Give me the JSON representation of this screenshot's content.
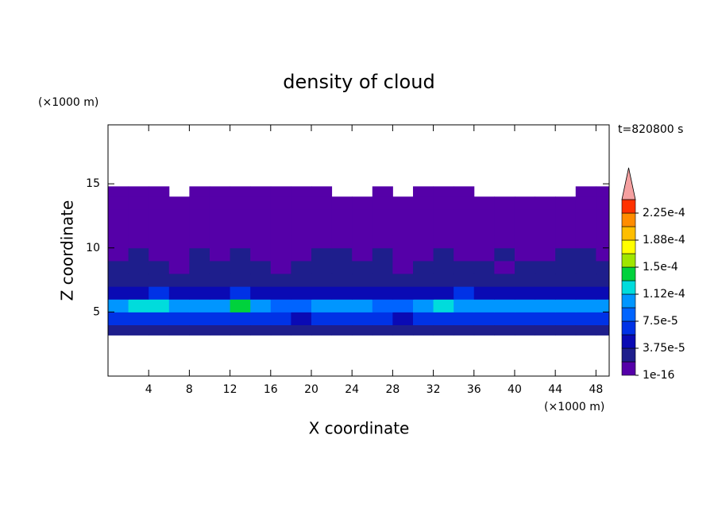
{
  "chart_data": {
    "type": "contour",
    "title": "density of cloud",
    "x_label": "X coordinate",
    "y_label": "Z coordinate",
    "x_unit": "(×1000 m)",
    "y_unit": "(×1000 m)",
    "time_label": "t=820800 s",
    "xlim": [
      0,
      49.3
    ],
    "ylim": [
      0,
      19.6
    ],
    "xticks": [
      4,
      8,
      12,
      16,
      20,
      24,
      28,
      32,
      36,
      40,
      44,
      48
    ],
    "yticks": [
      5,
      10,
      15
    ],
    "x_bins": [
      0,
      2,
      4,
      6,
      8,
      10,
      12,
      14,
      16,
      18,
      20,
      22,
      24,
      26,
      28,
      30,
      32,
      34,
      36,
      38,
      40,
      42,
      44,
      46,
      48,
      50
    ],
    "z_bins": [
      3.2,
      4,
      5,
      6,
      7,
      8,
      9,
      10,
      11,
      12,
      13,
      14,
      14.8
    ],
    "values": [
      [
        2.5e-05,
        2.5e-05,
        2.5e-05,
        2.5e-05,
        2.5e-05,
        2.5e-05,
        2.5e-05,
        2.5e-05,
        2.5e-05,
        2e-05,
        2.5e-05,
        2.5e-05,
        2.5e-05,
        2.5e-05,
        2.5e-05,
        2.5e-05,
        2.5e-05,
        2.5e-05,
        2.5e-05,
        2.5e-05,
        2.5e-05,
        2.5e-05,
        2.5e-05,
        2.5e-05,
        2.5e-05
      ],
      [
        6.5e-05,
        7e-05,
        6.5e-05,
        6e-05,
        6.5e-05,
        7e-05,
        6.5e-05,
        6e-05,
        6.5e-05,
        5e-05,
        6e-05,
        6.5e-05,
        6e-05,
        6.5e-05,
        5e-05,
        6.5e-05,
        7e-05,
        6.5e-05,
        6e-05,
        6.5e-05,
        7e-05,
        6.5e-05,
        6e-05,
        6.5e-05,
        7e-05
      ],
      [
        0.0001,
        0.000115,
        0.00012,
        0.00011,
        0.0001,
        0.000105,
        0.000135,
        0.00011,
        9e-05,
        8e-05,
        0.0001,
        9.5e-05,
        0.0001,
        9e-05,
        8e-05,
        0.0001,
        0.000115,
        0.00011,
        0.0001,
        9.5e-05,
        0.00011,
        0.0001,
        9.5e-05,
        0.000105,
        0.00011
      ],
      [
        5e-05,
        5.5e-05,
        6e-05,
        5e-05,
        4.5e-05,
        5.5e-05,
        6.5e-05,
        5e-05,
        4.5e-05,
        4e-05,
        5e-05,
        4.5e-05,
        5e-05,
        4.5e-05,
        4e-05,
        5e-05,
        5.5e-05,
        6e-05,
        5e-05,
        4.5e-05,
        5.5e-05,
        5e-05,
        4.5e-05,
        5e-05,
        5.5e-05
      ],
      [
        2.5e-05,
        3e-05,
        2.5e-05,
        2.5e-05,
        3e-05,
        2.5e-05,
        3e-05,
        2.5e-05,
        2.5e-05,
        3e-05,
        2.5e-05,
        2.5e-05,
        3e-05,
        2.5e-05,
        2.5e-05,
        3e-05,
        2.5e-05,
        3e-05,
        2.5e-05,
        2.5e-05,
        3e-05,
        2.5e-05,
        2.5e-05,
        3e-05,
        2.5e-05
      ],
      [
        2e-05,
        2.2e-05,
        2e-05,
        1.5e-05,
        2e-05,
        2.2e-05,
        2e-05,
        2e-05,
        1.5e-05,
        2e-05,
        2.2e-05,
        2e-05,
        2e-05,
        2.2e-05,
        1.5e-05,
        2e-05,
        2e-05,
        2.2e-05,
        2e-05,
        1.5e-05,
        2e-05,
        2.2e-05,
        2e-05,
        2e-05,
        2.2e-05
      ],
      [
        1.5e-05,
        2e-05,
        1.5e-05,
        1.5e-05,
        2e-05,
        1.5e-05,
        2e-05,
        1.5e-05,
        1.5e-05,
        1.5e-05,
        2e-05,
        2e-05,
        1.5e-05,
        2e-05,
        1.5e-05,
        1.5e-05,
        2e-05,
        1.5e-05,
        1.5e-05,
        2e-05,
        1.5e-05,
        1.5e-05,
        2e-05,
        2e-05,
        1.5e-05
      ],
      [
        5e-06,
        5e-06,
        5e-06,
        5e-06,
        1e-05,
        5e-06,
        5e-06,
        5e-06,
        5e-06,
        5e-06,
        5e-06,
        1e-05,
        5e-06,
        5e-06,
        5e-06,
        5e-06,
        5e-06,
        5e-06,
        5e-06,
        5e-06,
        5e-06,
        5e-06,
        5e-06,
        1e-05,
        5e-06
      ],
      [
        5e-06,
        5e-06,
        5e-06,
        5e-06,
        5e-06,
        5e-06,
        5e-06,
        5e-06,
        5e-06,
        5e-06,
        5e-06,
        5e-06,
        5e-06,
        5e-06,
        5e-06,
        5e-06,
        5e-06,
        5e-06,
        5e-06,
        5e-06,
        5e-06,
        5e-06,
        5e-06,
        5e-06,
        5e-06
      ],
      [
        5e-06,
        5e-06,
        5e-06,
        5e-06,
        5e-06,
        5e-06,
        5e-06,
        5e-06,
        5e-06,
        5e-06,
        5e-06,
        5e-06,
        5e-06,
        5e-06,
        5e-06,
        5e-06,
        5e-06,
        5e-06,
        5e-06,
        5e-06,
        5e-06,
        5e-06,
        5e-06,
        5e-06,
        5e-06
      ],
      [
        5e-06,
        5e-06,
        5e-06,
        5e-06,
        5e-06,
        5e-06,
        5e-06,
        5e-06,
        5e-06,
        5e-06,
        5e-06,
        5e-06,
        5e-06,
        5e-06,
        5e-06,
        5e-06,
        5e-06,
        5e-06,
        5e-06,
        5e-06,
        5e-06,
        5e-06,
        5e-06,
        5e-06,
        5e-06
      ],
      [
        5e-06,
        5e-06,
        5e-06,
        null,
        5e-06,
        5e-06,
        5e-06,
        5e-06,
        5e-06,
        5e-06,
        5e-06,
        null,
        null,
        5e-06,
        null,
        5e-06,
        5e-06,
        5e-06,
        null,
        null,
        null,
        null,
        null,
        5e-06,
        5e-06
      ]
    ],
    "levels": [
      1e-16,
      1.875e-05,
      3.75e-05,
      5.625e-05,
      7.5e-05,
      9.375e-05,
      0.0001125,
      0.00013125,
      0.00015,
      0.00016875,
      0.0001875,
      0.00020625,
      0.000225,
      0.00024375
    ],
    "colors": [
      "#5500a8",
      "#1e1e8c",
      "#0a0ab4",
      "#0032e6",
      "#0064ff",
      "#0096ff",
      "#00dcdc",
      "#00d23c",
      "#a0e600",
      "#ffff00",
      "#ffbe00",
      "#ff8c00",
      "#ff3200"
    ],
    "extend_color": "#f5a0a0",
    "colorbar_ticks": [
      {
        "value": 1e-16,
        "label": "1e-16"
      },
      {
        "value": 3.75e-05,
        "label": "3.75e-5"
      },
      {
        "value": 7.5e-05,
        "label": "7.5e-5"
      },
      {
        "value": 0.0001125,
        "label": "1.12e-4"
      },
      {
        "value": 0.00015,
        "label": "1.5e-4"
      },
      {
        "value": 0.0001875,
        "label": "1.88e-4"
      },
      {
        "value": 0.000225,
        "label": "2.25e-4"
      }
    ]
  }
}
